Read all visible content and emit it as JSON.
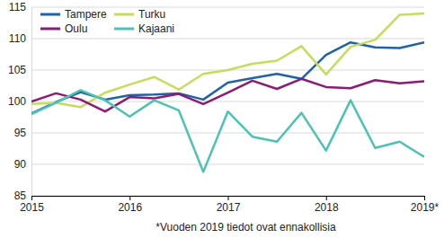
{
  "chart_data": {
    "type": "line",
    "categories": [
      "2015",
      null,
      null,
      null,
      "2016",
      null,
      null,
      null,
      "2017",
      null,
      null,
      null,
      "2018",
      null,
      null,
      null,
      "2019*"
    ],
    "series": [
      {
        "name": "Tampere",
        "color": "#1f63a6",
        "values": [
          98.1,
          99.9,
          101.5,
          100.3,
          101.0,
          101.1,
          101.3,
          100.3,
          103.0,
          103.7,
          104.4,
          103.6,
          107.4,
          109.4,
          108.6,
          108.5,
          109.4
        ]
      },
      {
        "name": "Turku",
        "color": "#c8dc5c",
        "values": [
          99.6,
          99.8,
          99.1,
          101.4,
          102.7,
          103.9,
          101.9,
          104.4,
          105.0,
          106.0,
          106.5,
          108.8,
          104.3,
          108.7,
          109.8,
          113.8,
          114.0
        ]
      },
      {
        "name": "Oulu",
        "color": "#8c1b74",
        "values": [
          100.0,
          101.3,
          100.3,
          98.4,
          100.7,
          100.5,
          101.2,
          99.6,
          101.4,
          103.3,
          102.0,
          103.6,
          102.3,
          102.1,
          103.4,
          102.9,
          103.2
        ]
      },
      {
        "name": "Kajaani",
        "color": "#4cc2b4",
        "values": [
          98.0,
          99.8,
          101.8,
          100.2,
          97.6,
          100.2,
          98.6,
          88.8,
          98.4,
          94.4,
          93.6,
          98.2,
          92.2,
          100.2,
          92.6,
          93.6,
          91.2
        ]
      }
    ],
    "ylim": [
      85,
      115
    ],
    "yticks": [
      85,
      90,
      95,
      100,
      105,
      110,
      115
    ],
    "grid": true,
    "legend": "upper left",
    "footnote": "*Vuoden 2019 tiedot ovat ennakollisia"
  }
}
